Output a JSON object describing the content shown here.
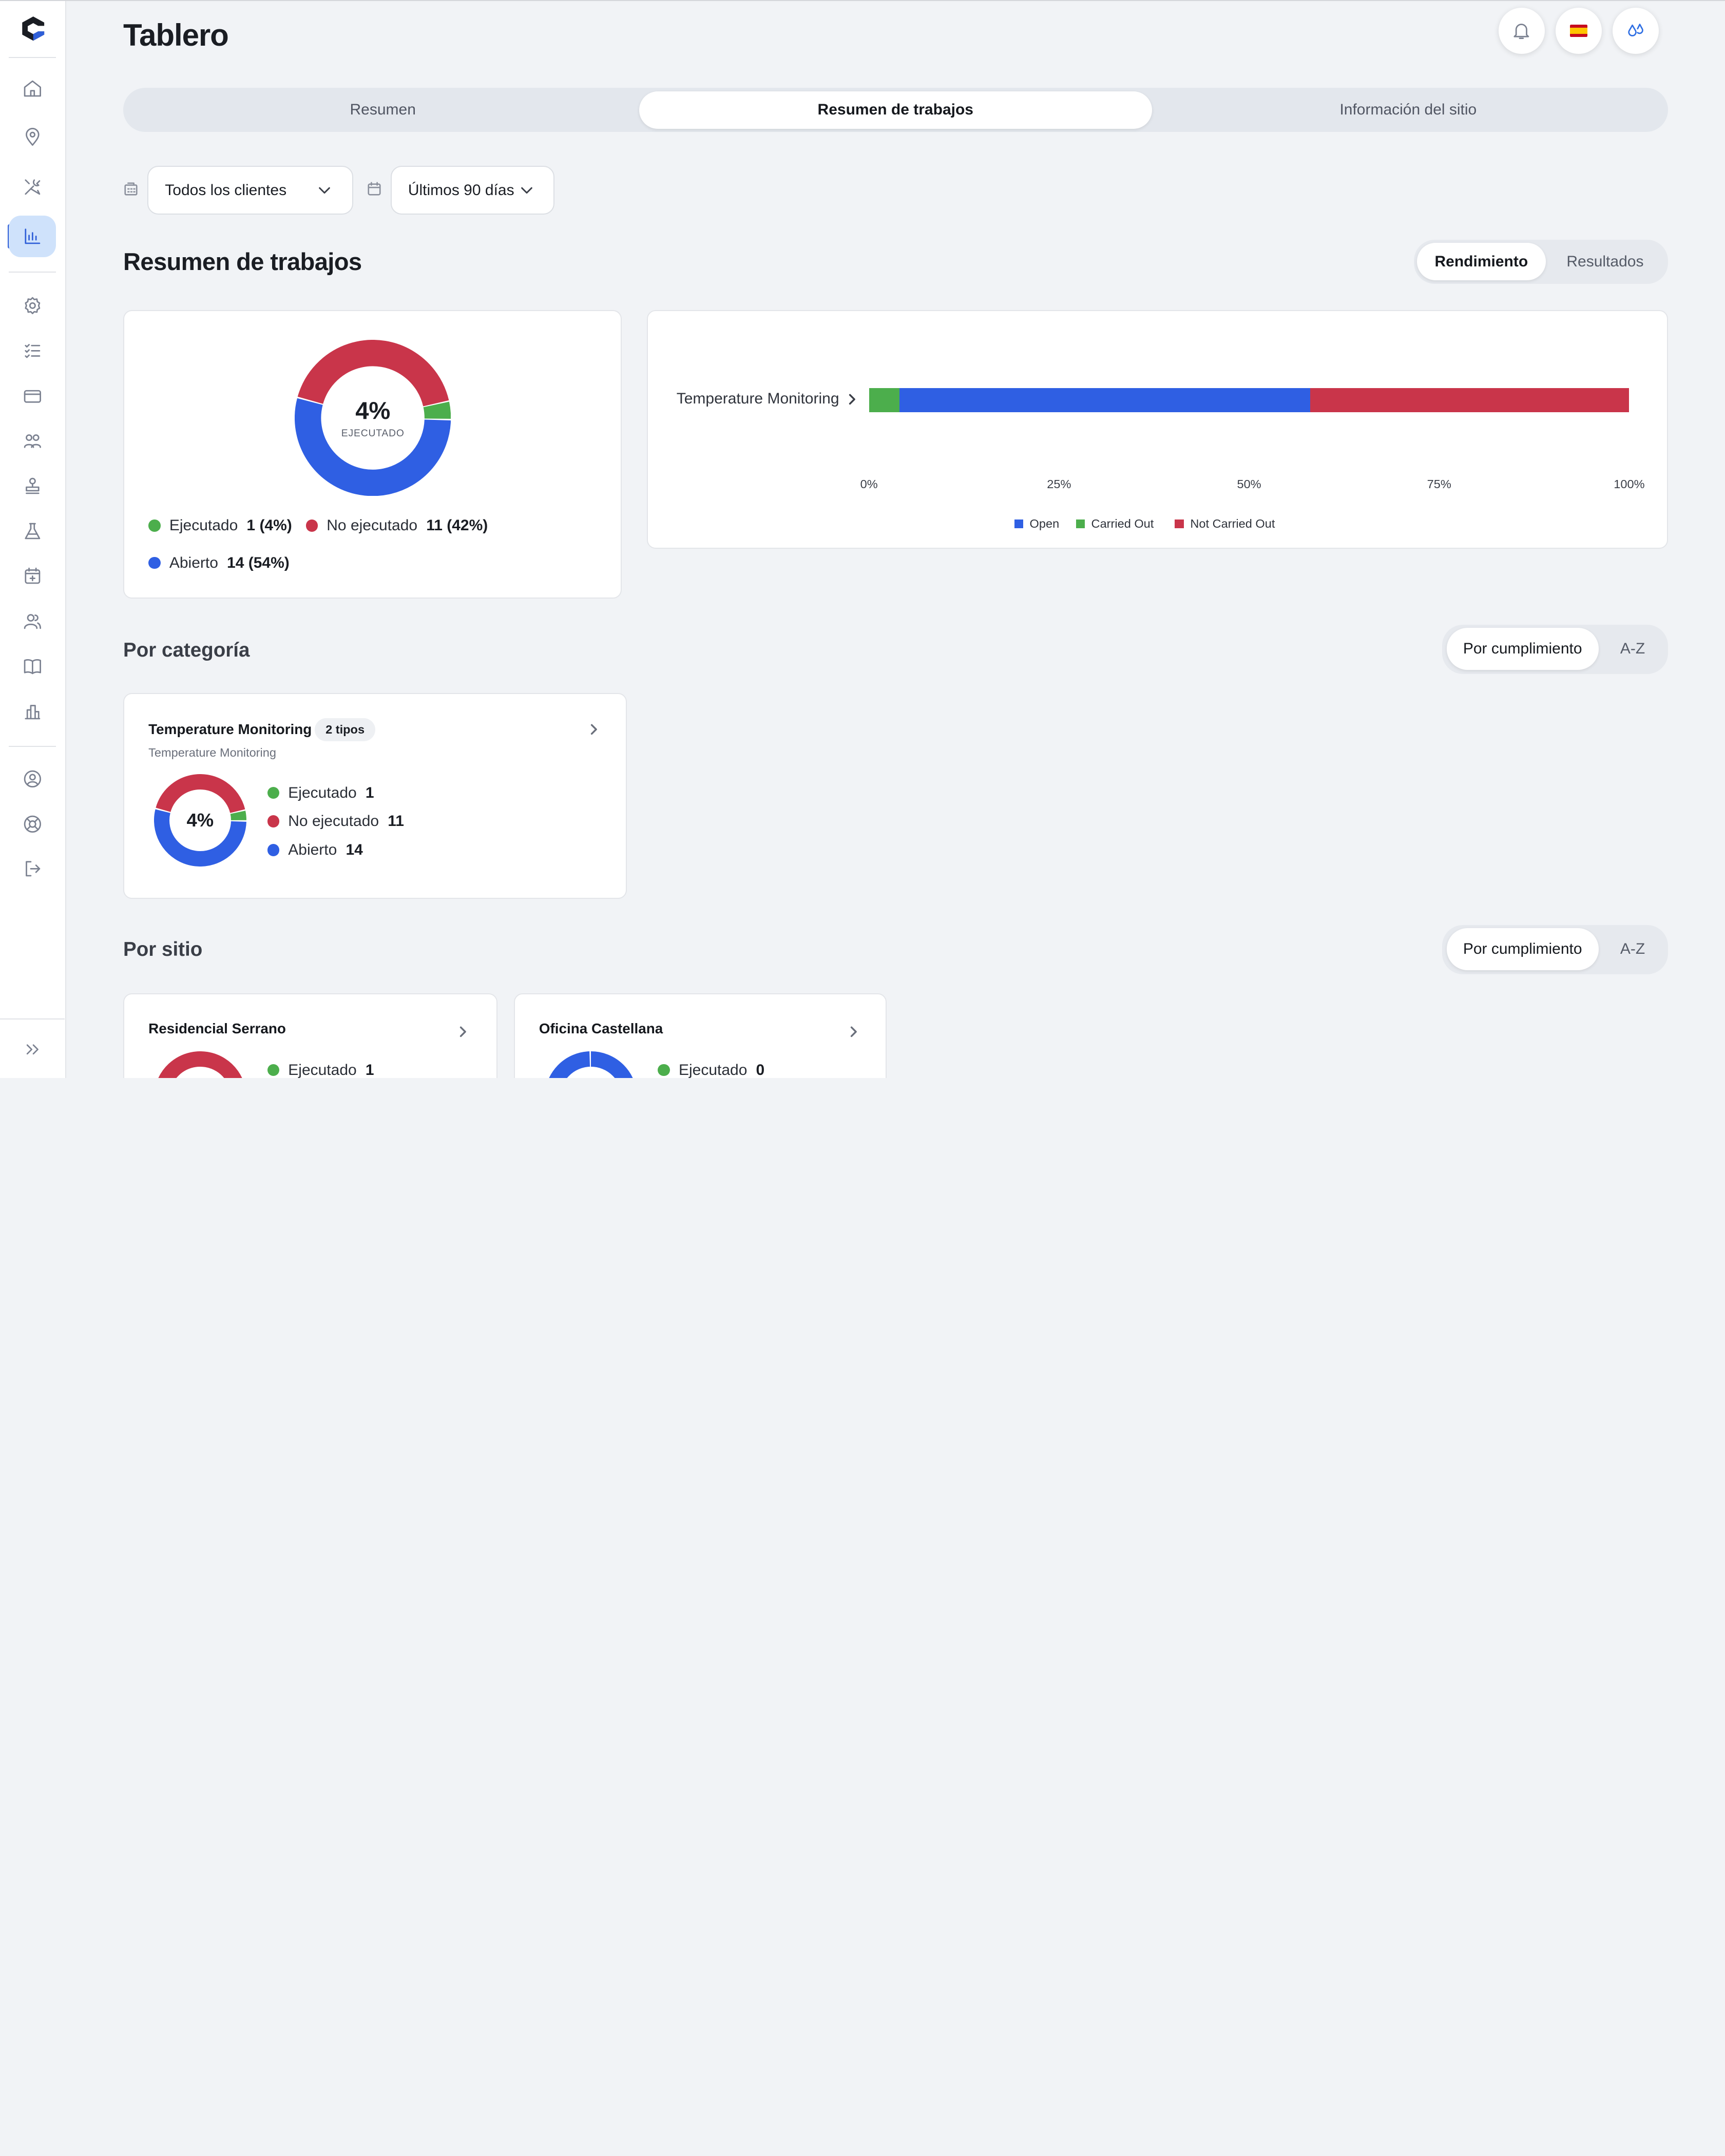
{
  "header": {
    "title": "Tablero"
  },
  "tabs": [
    {
      "label": "Resumen",
      "selected": false
    },
    {
      "label": "Resumen de trabajos",
      "selected": true
    },
    {
      "label": "Información del sitio",
      "selected": false
    }
  ],
  "filters": {
    "client": {
      "icon": "building-icon",
      "value": "Todos los clientes"
    },
    "range": {
      "icon": "calendar-icon",
      "value": "Últimos 90 días"
    }
  },
  "summary": {
    "title": "Resumen de trabajos",
    "toggle": [
      {
        "label": "Rendimiento",
        "selected": true
      },
      {
        "label": "Resultados",
        "selected": false
      }
    ],
    "donut": {
      "percent": "4%",
      "caption": "EJECUTADO"
    },
    "legend": [
      {
        "label": "Ejecutado",
        "value": "1 (4%)",
        "color": "#4cae4c"
      },
      {
        "label": "No ejecutado",
        "value": "11 (42%)",
        "color": "#c9354a"
      },
      {
        "label": "Abierto",
        "value": "14 (54%)",
        "color": "#2f5fe3"
      }
    ]
  },
  "chart_data": {
    "type": "bar",
    "orientation": "horizontal",
    "stacked": true,
    "normalized": true,
    "categories": [
      "Temperature Monitoring"
    ],
    "series": [
      {
        "name": "Carried Out",
        "values": [
          4
        ],
        "color": "#4cae4c"
      },
      {
        "name": "Open",
        "values": [
          54
        ],
        "color": "#2f5fe3"
      },
      {
        "name": "Not Carried Out",
        "values": [
          42
        ],
        "color": "#c9354a"
      }
    ],
    "xticks": [
      "0%",
      "25%",
      "50%",
      "75%",
      "100%"
    ],
    "xlim": [
      0,
      100
    ],
    "legend": [
      {
        "label": "Open",
        "color": "#2f5fe3"
      },
      {
        "label": "Carried Out",
        "color": "#4cae4c"
      },
      {
        "label": "Not Carried Out",
        "color": "#c9354a"
      }
    ],
    "legend_position": "bottom-center",
    "grid": false
  },
  "by_category": {
    "title": "Por categoría",
    "sort": [
      {
        "label": "Por cumplimiento",
        "selected": true
      },
      {
        "label": "A-Z",
        "selected": false
      }
    ],
    "cards": [
      {
        "title": "Temperature Monitoring",
        "chip": "2 tipos",
        "subtitle": "Temperature Monitoring",
        "percent": "4%",
        "items": [
          {
            "label": "Ejecutado",
            "value": "1",
            "color": "#4cae4c"
          },
          {
            "label": "No ejecutado",
            "value": "11",
            "color": "#c9354a"
          },
          {
            "label": "Abierto",
            "value": "14",
            "color": "#2f5fe3"
          }
        ]
      }
    ]
  },
  "by_site": {
    "title": "Por sitio",
    "sort": [
      {
        "label": "Por cumplimiento",
        "selected": true
      },
      {
        "label": "A-Z",
        "selected": false
      }
    ],
    "cards": [
      {
        "title": "Residencial Serrano",
        "items": [
          {
            "label": "Ejecutado",
            "value": "1",
            "color": "#4cae4c"
          }
        ]
      },
      {
        "title": "Oficina Castellana",
        "items": [
          {
            "label": "Ejecutado",
            "value": "0",
            "color": "#4cae4c"
          }
        ]
      }
    ]
  },
  "sidebar": {
    "items": [
      "home-icon",
      "location-pin-icon",
      "tools-icon",
      "analytics-icon",
      "settings-icon",
      "checklist-icon",
      "card-icon",
      "groups-icon",
      "stamp-icon",
      "flask-icon",
      "calendar-plus-icon",
      "users-icon",
      "book-icon",
      "building-icon",
      "account-icon",
      "help-icon",
      "logout-icon"
    ],
    "active": "analytics-icon",
    "expand": "expand-icon"
  }
}
